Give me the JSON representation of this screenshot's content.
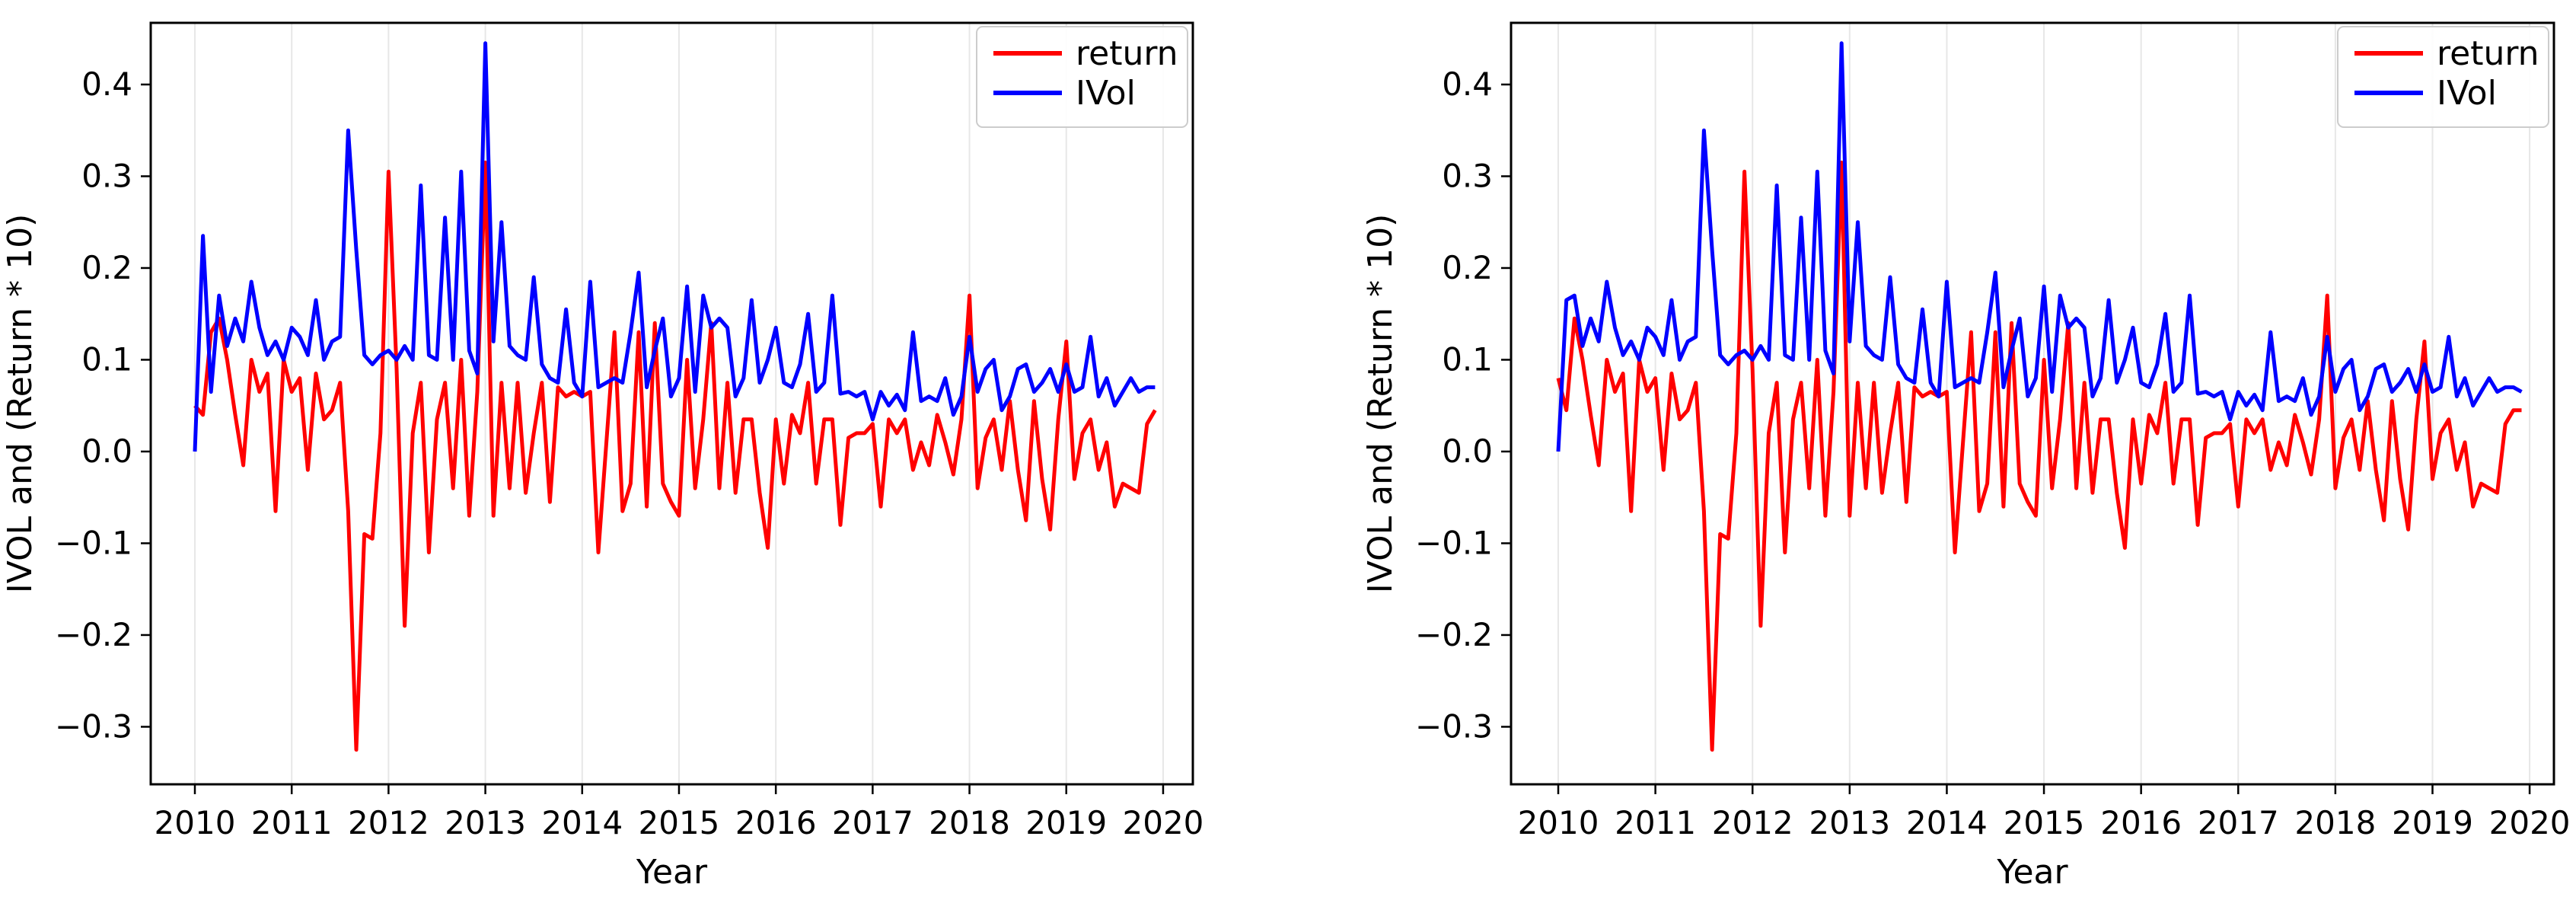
{
  "figure": {
    "background": "#ffffff"
  },
  "colors": {
    "return_line": "#ff0000",
    "ivol_line": "#0000ff",
    "grid": "#e7e7e7",
    "axis": "#000000",
    "legend_border": "#cccccc",
    "legend_bg": "#ffffff",
    "text": "#000000"
  },
  "chart_data": [
    {
      "type": "line",
      "title": "",
      "xlabel": "Year",
      "ylabel": "IVOL and (Return * 10)",
      "grid": "vertical-only",
      "legend_position": "upper-right",
      "xlim": [
        2009.544,
        2020.307
      ],
      "ylim": [
        -0.3627,
        0.4672
      ],
      "x_ticks": [
        {
          "v": 2010,
          "label": "2010"
        },
        {
          "v": 2011,
          "label": "2011"
        },
        {
          "v": 2012,
          "label": "2012"
        },
        {
          "v": 2013,
          "label": "2013"
        },
        {
          "v": 2014,
          "label": "2014"
        },
        {
          "v": 2015,
          "label": "2015"
        },
        {
          "v": 2016,
          "label": "2016"
        },
        {
          "v": 2017,
          "label": "2017"
        },
        {
          "v": 2018,
          "label": "2018"
        },
        {
          "v": 2019,
          "label": "2019"
        },
        {
          "v": 2020,
          "label": "2020"
        }
      ],
      "y_ticks": [
        {
          "v": 0.4,
          "label": "0.4"
        },
        {
          "v": 0.3,
          "label": "0.3"
        },
        {
          "v": 0.2,
          "label": "0.2"
        },
        {
          "v": 0.1,
          "label": "0.1"
        },
        {
          "v": 0.0,
          "label": "0.0"
        },
        {
          "v": -0.1,
          "label": "−0.1"
        },
        {
          "v": -0.2,
          "label": "−0.2"
        },
        {
          "v": -0.3,
          "label": "−0.3"
        }
      ],
      "x_start": 2010.0,
      "x_step": 0.0833333,
      "legend": [
        {
          "label": "return",
          "color": "#ff0000"
        },
        {
          "label": "IVol",
          "color": "#0000ff"
        }
      ],
      "series": [
        {
          "name": "return",
          "color": "#ff0000",
          "values": [
            0.05,
            0.04,
            0.13,
            0.145,
            0.1,
            0.04,
            -0.015,
            0.1,
            0.065,
            0.085,
            -0.065,
            0.1,
            0.065,
            0.08,
            -0.02,
            0.085,
            0.035,
            0.045,
            0.075,
            -0.065,
            -0.325,
            -0.09,
            -0.095,
            0.02,
            0.305,
            0.09,
            -0.19,
            0.02,
            0.075,
            -0.11,
            0.035,
            0.075,
            -0.04,
            0.1,
            -0.07,
            0.065,
            0.315,
            -0.07,
            0.075,
            -0.04,
            0.075,
            -0.045,
            0.02,
            0.075,
            -0.055,
            0.07,
            0.06,
            0.065,
            0.06,
            0.065,
            -0.11,
            0.01,
            0.13,
            -0.065,
            -0.035,
            0.13,
            -0.06,
            0.14,
            -0.035,
            -0.055,
            -0.07,
            0.1,
            -0.04,
            0.035,
            0.14,
            -0.04,
            0.075,
            -0.045,
            0.035,
            0.035,
            -0.045,
            -0.105,
            0.035,
            -0.035,
            0.04,
            0.02,
            0.075,
            -0.035,
            0.035,
            0.035,
            -0.08,
            0.015,
            0.02,
            0.02,
            0.03,
            -0.06,
            0.035,
            0.02,
            0.035,
            -0.02,
            0.01,
            -0.015,
            0.04,
            0.01,
            -0.025,
            0.035,
            0.17,
            -0.04,
            0.015,
            0.035,
            -0.02,
            0.055,
            -0.02,
            -0.075,
            0.055,
            -0.03,
            -0.085,
            0.035,
            0.12,
            -0.03,
            0.02,
            0.035,
            -0.02,
            0.01,
            -0.06,
            -0.035,
            -0.04,
            -0.045,
            0.03,
            0.045
          ]
        },
        {
          "name": "IVol",
          "color": "#0000ff",
          "values": [
            0.0,
            0.235,
            0.065,
            0.17,
            0.115,
            0.145,
            0.12,
            0.185,
            0.135,
            0.105,
            0.12,
            0.1,
            0.135,
            0.125,
            0.105,
            0.165,
            0.1,
            0.12,
            0.125,
            0.35,
            0.22,
            0.105,
            0.095,
            0.105,
            0.11,
            0.1,
            0.115,
            0.1,
            0.29,
            0.105,
            0.1,
            0.255,
            0.1,
            0.305,
            0.11,
            0.085,
            0.445,
            0.12,
            0.25,
            0.115,
            0.105,
            0.1,
            0.19,
            0.095,
            0.08,
            0.075,
            0.155,
            0.075,
            0.06,
            0.185,
            0.07,
            0.075,
            0.08,
            0.075,
            0.13,
            0.195,
            0.07,
            0.11,
            0.145,
            0.06,
            0.08,
            0.18,
            0.065,
            0.17,
            0.135,
            0.145,
            0.135,
            0.06,
            0.08,
            0.165,
            0.075,
            0.1,
            0.135,
            0.075,
            0.07,
            0.095,
            0.15,
            0.065,
            0.075,
            0.17,
            0.063,
            0.065,
            0.06,
            0.065,
            0.035,
            0.065,
            0.05,
            0.062,
            0.045,
            0.13,
            0.055,
            0.06,
            0.055,
            0.08,
            0.04,
            0.06,
            0.125,
            0.065,
            0.09,
            0.1,
            0.045,
            0.06,
            0.09,
            0.095,
            0.065,
            0.075,
            0.09,
            0.065,
            0.095,
            0.065,
            0.07,
            0.125,
            0.06,
            0.08,
            0.05,
            0.065,
            0.08,
            0.065,
            0.07,
            0.07
          ]
        }
      ]
    },
    {
      "type": "line",
      "title": "",
      "xlabel": "Year",
      "ylabel": "IVOL and (Return * 10)",
      "grid": "vertical-only",
      "legend_position": "upper-right",
      "xlim": [
        2009.514,
        2020.25
      ],
      "ylim": [
        -0.3627,
        0.4672
      ],
      "x_ticks": [
        {
          "v": 2010,
          "label": "2010"
        },
        {
          "v": 2011,
          "label": "2011"
        },
        {
          "v": 2012,
          "label": "2012"
        },
        {
          "v": 2013,
          "label": "2013"
        },
        {
          "v": 2014,
          "label": "2014"
        },
        {
          "v": 2015,
          "label": "2015"
        },
        {
          "v": 2016,
          "label": "2016"
        },
        {
          "v": 2017,
          "label": "2017"
        },
        {
          "v": 2018,
          "label": "2018"
        },
        {
          "v": 2019,
          "label": "2019"
        },
        {
          "v": 2020,
          "label": "2020"
        }
      ],
      "y_ticks": [
        {
          "v": 0.4,
          "label": "0.4"
        },
        {
          "v": 0.3,
          "label": "0.3"
        },
        {
          "v": 0.2,
          "label": "0.2"
        },
        {
          "v": 0.1,
          "label": "0.1"
        },
        {
          "v": 0.0,
          "label": "0.0"
        },
        {
          "v": -0.1,
          "label": "−0.1"
        },
        {
          "v": -0.2,
          "label": "−0.2"
        },
        {
          "v": -0.3,
          "label": "−0.3"
        }
      ],
      "x_start": 2010.0,
      "x_step": 0.0833333,
      "legend": [
        {
          "label": "return",
          "color": "#ff0000"
        },
        {
          "label": "IVol",
          "color": "#0000ff"
        }
      ],
      "series": [
        {
          "name": "return",
          "color": "#ff0000",
          "values": [
            0.08,
            0.045,
            0.145,
            0.1,
            0.04,
            -0.015,
            0.1,
            0.065,
            0.085,
            -0.065,
            0.1,
            0.065,
            0.08,
            -0.02,
            0.085,
            0.035,
            0.045,
            0.075,
            -0.065,
            -0.325,
            -0.09,
            -0.095,
            0.02,
            0.305,
            0.09,
            -0.19,
            0.02,
            0.075,
            -0.11,
            0.035,
            0.075,
            -0.04,
            0.1,
            -0.07,
            0.065,
            0.315,
            -0.07,
            0.075,
            -0.04,
            0.075,
            -0.045,
            0.02,
            0.075,
            -0.055,
            0.07,
            0.06,
            0.065,
            0.06,
            0.065,
            -0.11,
            0.01,
            0.13,
            -0.065,
            -0.035,
            0.13,
            -0.06,
            0.14,
            -0.035,
            -0.055,
            -0.07,
            0.1,
            -0.04,
            0.035,
            0.14,
            -0.04,
            0.075,
            -0.045,
            0.035,
            0.035,
            -0.045,
            -0.105,
            0.035,
            -0.035,
            0.04,
            0.02,
            0.075,
            -0.035,
            0.035,
            0.035,
            -0.08,
            0.015,
            0.02,
            0.02,
            0.03,
            -0.06,
            0.035,
            0.02,
            0.035,
            -0.02,
            0.01,
            -0.015,
            0.04,
            0.01,
            -0.025,
            0.035,
            0.17,
            -0.04,
            0.015,
            0.035,
            -0.02,
            0.055,
            -0.02,
            -0.075,
            0.055,
            -0.03,
            -0.085,
            0.035,
            0.12,
            -0.03,
            0.02,
            0.035,
            -0.02,
            0.01,
            -0.06,
            -0.035,
            -0.04,
            -0.045,
            0.03,
            0.045,
            0.045
          ]
        },
        {
          "name": "IVol",
          "color": "#0000ff",
          "values": [
            0.0,
            0.165,
            0.17,
            0.115,
            0.145,
            0.12,
            0.185,
            0.135,
            0.105,
            0.12,
            0.1,
            0.135,
            0.125,
            0.105,
            0.165,
            0.1,
            0.12,
            0.125,
            0.35,
            0.22,
            0.105,
            0.095,
            0.105,
            0.11,
            0.1,
            0.115,
            0.1,
            0.29,
            0.105,
            0.1,
            0.255,
            0.1,
            0.305,
            0.11,
            0.085,
            0.445,
            0.12,
            0.25,
            0.115,
            0.105,
            0.1,
            0.19,
            0.095,
            0.08,
            0.075,
            0.155,
            0.075,
            0.06,
            0.185,
            0.07,
            0.075,
            0.08,
            0.075,
            0.13,
            0.195,
            0.07,
            0.11,
            0.145,
            0.06,
            0.08,
            0.18,
            0.065,
            0.17,
            0.135,
            0.145,
            0.135,
            0.06,
            0.08,
            0.165,
            0.075,
            0.1,
            0.135,
            0.075,
            0.07,
            0.095,
            0.15,
            0.065,
            0.075,
            0.17,
            0.063,
            0.065,
            0.06,
            0.065,
            0.035,
            0.065,
            0.05,
            0.062,
            0.045,
            0.13,
            0.055,
            0.06,
            0.055,
            0.08,
            0.04,
            0.06,
            0.125,
            0.065,
            0.09,
            0.1,
            0.045,
            0.06,
            0.09,
            0.095,
            0.065,
            0.075,
            0.09,
            0.065,
            0.095,
            0.065,
            0.07,
            0.125,
            0.06,
            0.08,
            0.05,
            0.065,
            0.08,
            0.065,
            0.07,
            0.07,
            0.065
          ]
        }
      ]
    }
  ]
}
